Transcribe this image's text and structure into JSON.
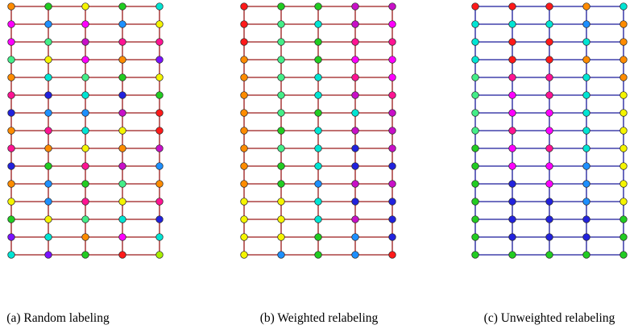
{
  "palette": {
    "O": "#ff8c00",
    "G": "#22cc22",
    "Y": "#f5f500",
    "C": "#00e5d4",
    "M": "#ff00ff",
    "B": "#1e90ff",
    "P": "#c810c8",
    "L": "#44ee88",
    "V": "#7a12ff",
    "K": "#ff1493",
    "R": "#ff1a1a",
    "N": "#2222dd",
    "H": "#a8f000"
  },
  "panels": [
    {
      "caption": "(a) Random labeling",
      "edge_color": "#9b1a1a",
      "rows": [
        "OGYGC",
        "MBMBY",
        "MLPKK",
        "LYMOV",
        "OCLGY",
        "KNCNG",
        "NBBPR",
        "OKCYR",
        "KOYOP",
        "NGKPB",
        "OBGLO",
        "YBKYK",
        "GYLCN",
        "VCOMC",
        "CVGRH"
      ]
    },
    {
      "caption": "(b) Weighted relabeling",
      "edge_color": "#9b1a1a",
      "rows": [
        "RGGPP",
        "RLCPM",
        "RLGKK",
        "OLGMM",
        "OLCKM",
        "OLCPK",
        "OLGCP",
        "OGCPP",
        "OLCNP",
        "OGCNN",
        "OGBPP",
        "YYCNN",
        "YYCPN",
        "YYGBN",
        "YBGBR"
      ]
    },
    {
      "caption": "(c) Unweighted relabeling",
      "edge_color": "#1a1a9b",
      "rows": [
        "RRROC",
        "CCCBO",
        "CRRCO",
        "CRROO",
        "LKKCO",
        "LMKCY",
        "LMMCY",
        "LKMCY",
        "GMKCY",
        "GMMBY",
        "GNMBY",
        "GNNBY",
        "GNNNG",
        "GNNNG",
        "GGGGG"
      ]
    }
  ]
}
